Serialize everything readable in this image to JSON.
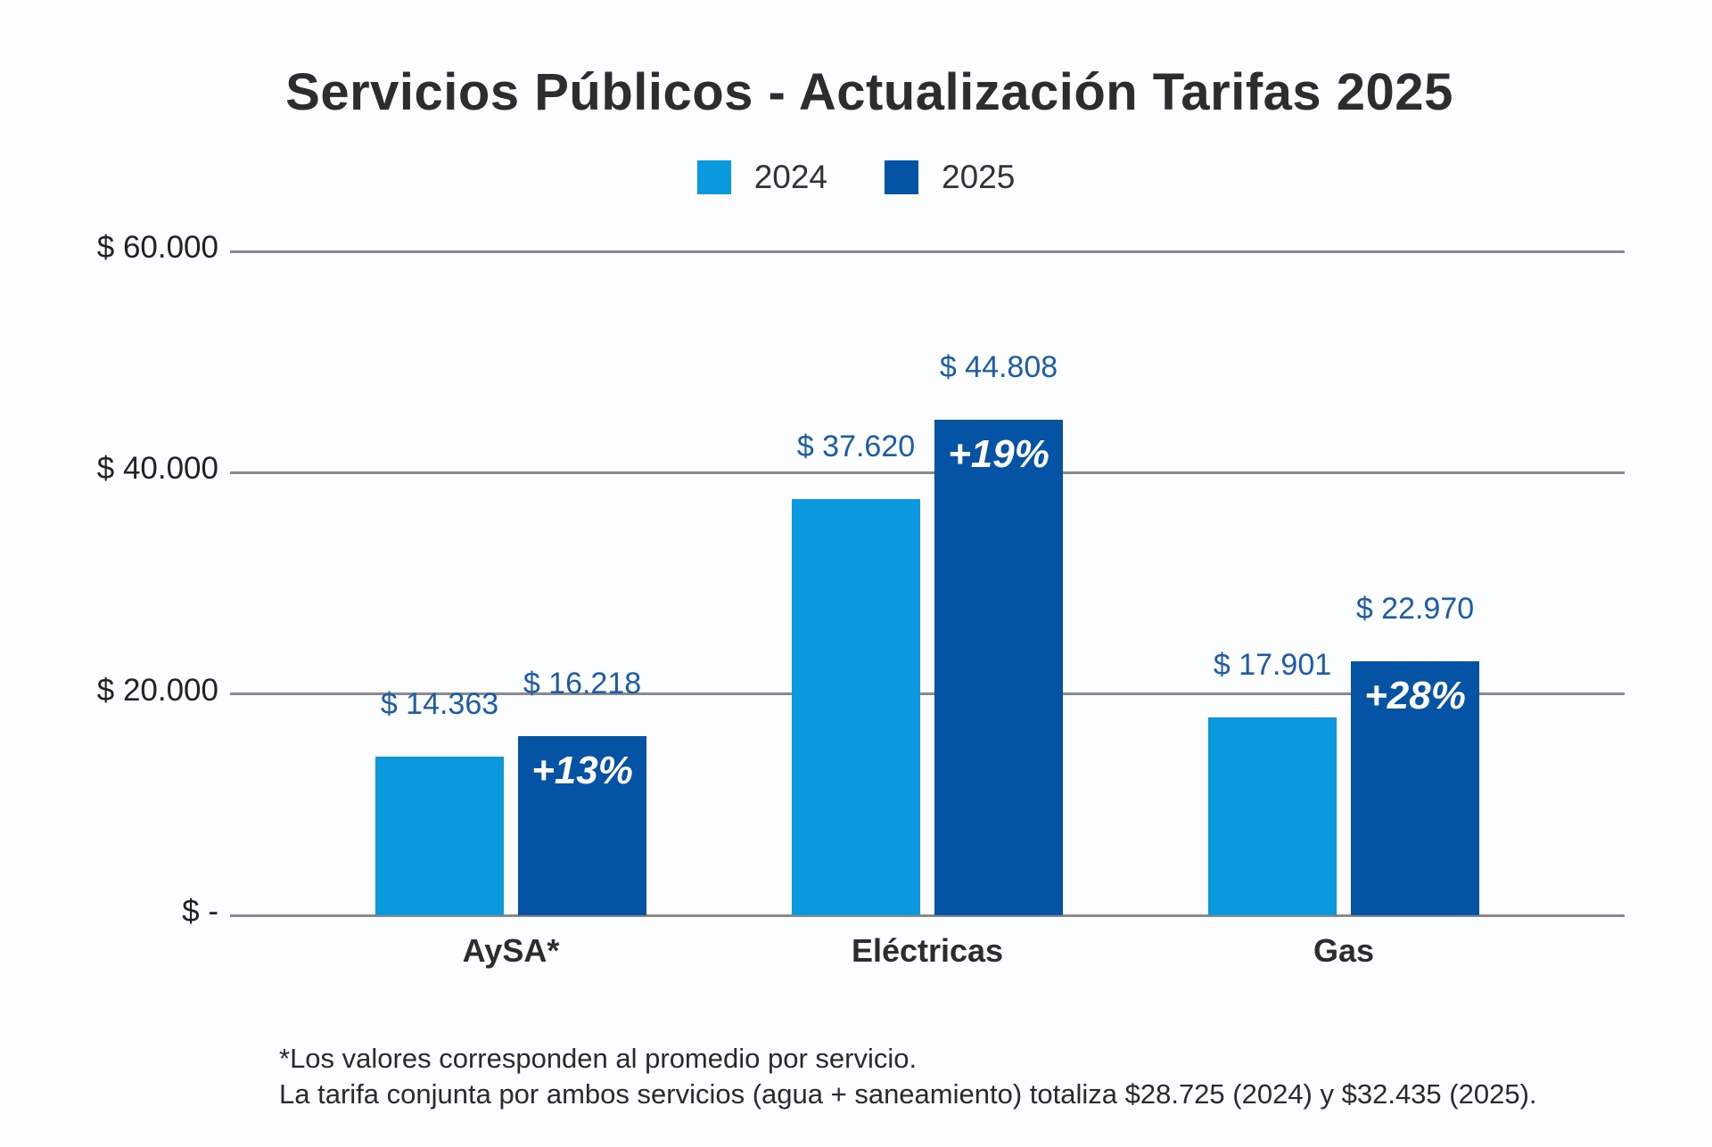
{
  "title": "Servicios Públicos - Actualización Tarifas 2025",
  "legend": {
    "items": [
      {
        "label": "2024",
        "color": "#0999dc"
      },
      {
        "label": "2025",
        "color": "#0553a4"
      }
    ]
  },
  "footnote": {
    "line1": "*Los valores corresponden al promedio por servicio.",
    "line2": "La tarifa conjunta por ambos servicios (agua + saneamiento) totaliza $28.725 (2024) y $32.435 (2025)."
  },
  "colors": {
    "background": "#fcfdfe",
    "bar_2024": "#0999dc",
    "bar_2025": "#0553a4",
    "value_label_text": "#1d5ca9",
    "pct_label_text": "#ffffff",
    "gridline": "#8a8a8a",
    "title_text": "#2d2d2d",
    "axis_text": "#222222"
  },
  "chart_data": {
    "type": "bar",
    "categories": [
      "AySA*",
      "Eléctricas",
      "Gas"
    ],
    "series": [
      {
        "name": "2024",
        "color": "#0999dc",
        "values": [
          14363,
          37620,
          17901
        ],
        "value_labels": [
          "$ 14.363",
          "$ 37.620",
          "$ 17.901"
        ]
      },
      {
        "name": "2025",
        "color": "#0553a4",
        "values": [
          16218,
          44808,
          22970
        ],
        "value_labels": [
          "$ 16.218",
          "$ 44.808",
          "$ 22.970"
        ],
        "pct_labels": [
          "+13%",
          "+19%",
          "+28%"
        ]
      }
    ],
    "title": "Servicios Públicos - Actualización Tarifas 2025",
    "xlabel": "",
    "ylabel": "",
    "ylim": [
      0,
      60000
    ],
    "y_ticks": [
      {
        "value": 0,
        "label": "$ -"
      },
      {
        "value": 20000,
        "label": "$ 20.000"
      },
      {
        "value": 40000,
        "label": "$ 40.000"
      },
      {
        "value": 60000,
        "label": "$ 60.000"
      }
    ],
    "grid": true,
    "legend_position": "top-center"
  }
}
